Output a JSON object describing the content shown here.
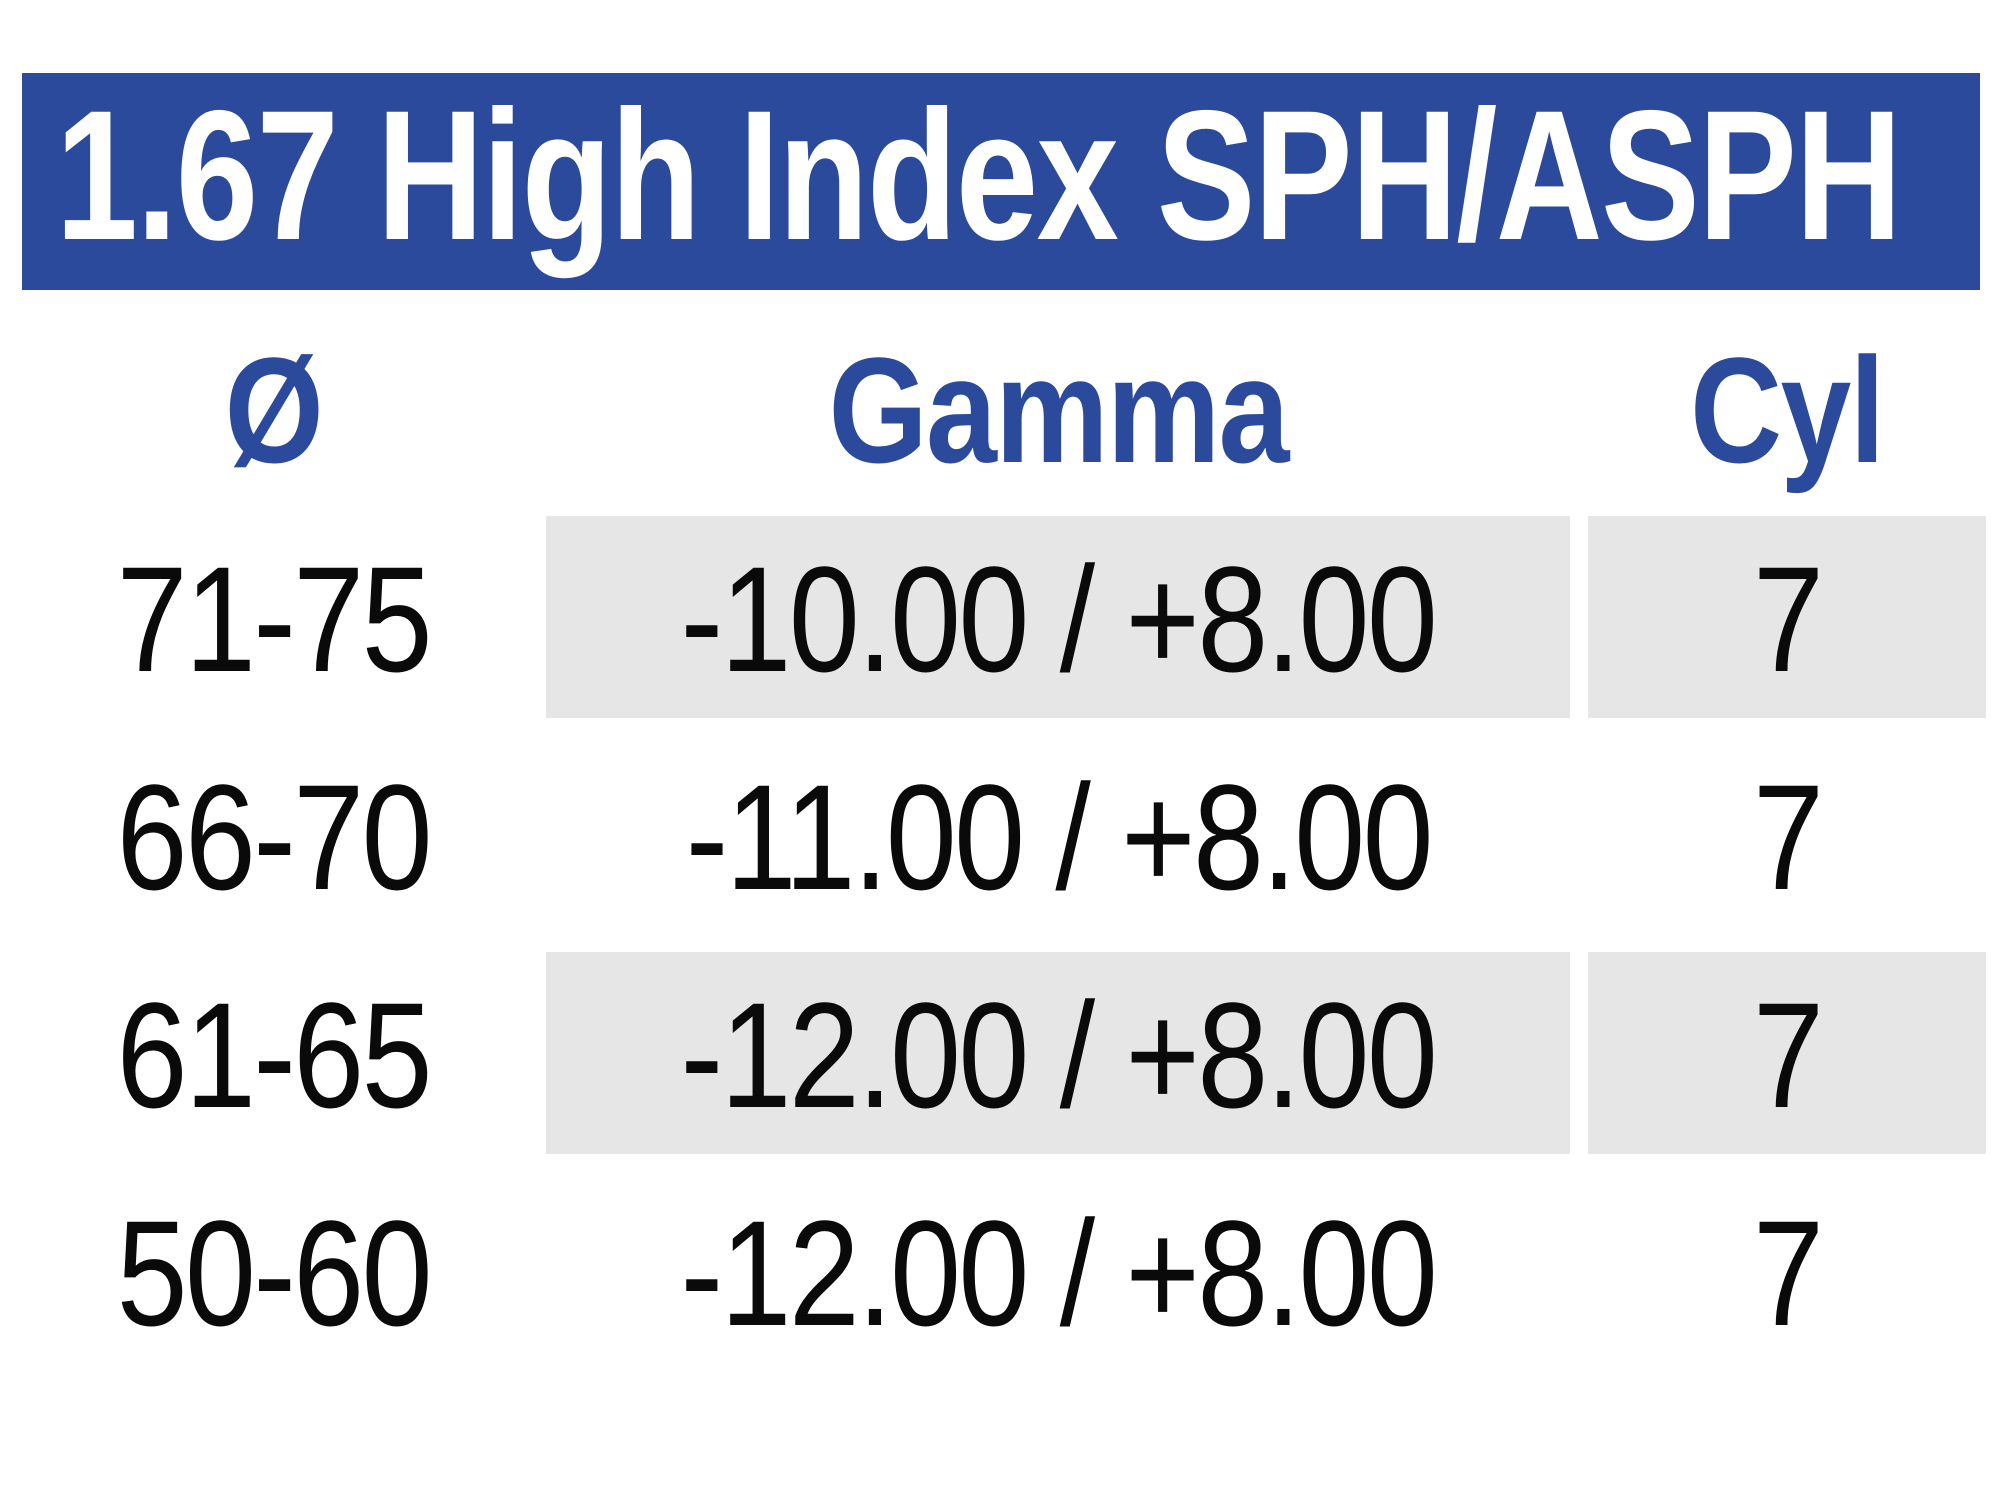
{
  "colors": {
    "accent": "#2b4a9b",
    "shade": "#e6e6e7",
    "ink": "#0a0a0a"
  },
  "banner": {
    "title": "1.67 High Index SPH/ASPH"
  },
  "table": {
    "headers": {
      "diameter": "Ø",
      "gamma": "Gamma",
      "cyl": "Cyl"
    },
    "rows": [
      {
        "diameter": "71-75",
        "gamma": "-10.00 / +8.00",
        "cyl": "7",
        "shaded": true
      },
      {
        "diameter": "66-70",
        "gamma": "-11.00 / +8.00",
        "cyl": "7",
        "shaded": false
      },
      {
        "diameter": "61-65",
        "gamma": "-12.00 / +8.00",
        "cyl": "7",
        "shaded": true
      },
      {
        "diameter": "50-60",
        "gamma": "-12.00 / +8.00",
        "cyl": "7",
        "shaded": false
      }
    ]
  }
}
